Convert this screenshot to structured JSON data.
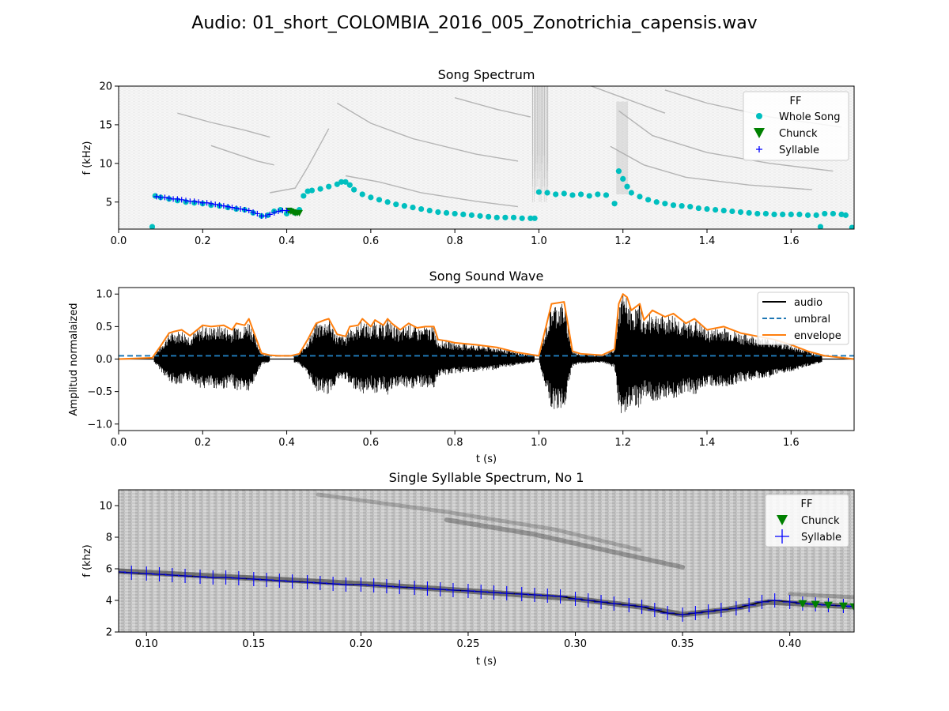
{
  "figure": {
    "suptitle": "Audio: 01_short_COLOMBIA_2016_005_Zonotrichia_capensis.wav"
  },
  "colors": {
    "whole_song": "#00bfbf",
    "chunk": "#008000",
    "syllable": "#0000ff",
    "audio": "#000000",
    "umbral": "#1f77b4",
    "envelope": "#ff7f0e"
  },
  "chart_data": [
    {
      "id": "song-spectrum",
      "type": "scatter",
      "background": "spectrogram",
      "title": "Song Spectrum",
      "xlabel": "",
      "ylabel": "f (kHz)",
      "xlim": [
        0,
        1.75
      ],
      "ylim": [
        1.5,
        20
      ],
      "xticks": [
        "0.0",
        "0.2",
        "0.4",
        "0.6",
        "0.8",
        "1.0",
        "1.2",
        "1.4",
        "1.6"
      ],
      "yticks": [
        "5",
        "10",
        "15",
        "20"
      ],
      "legend": {
        "title": "FF",
        "position": "top-right",
        "entries": [
          {
            "label": "Whole Song",
            "marker": "circle",
            "color": "#00bfbf"
          },
          {
            "label": "Chunck",
            "marker": "triangle-down",
            "color": "#008000"
          },
          {
            "label": "Syllable",
            "marker": "plus",
            "color": "#0000ff"
          }
        ]
      },
      "series": [
        {
          "name": "Whole Song",
          "marker": "circle",
          "color": "#00bfbf",
          "x": [
            0.08,
            0.087,
            0.1,
            0.12,
            0.14,
            0.16,
            0.18,
            0.2,
            0.22,
            0.24,
            0.26,
            0.28,
            0.3,
            0.32,
            0.34,
            0.355,
            0.37,
            0.385,
            0.4,
            0.41,
            0.42,
            0.43,
            0.44,
            0.45,
            0.46,
            0.48,
            0.5,
            0.52,
            0.53,
            0.54,
            0.55,
            0.56,
            0.58,
            0.6,
            0.62,
            0.64,
            0.66,
            0.68,
            0.7,
            0.72,
            0.74,
            0.76,
            0.78,
            0.8,
            0.82,
            0.84,
            0.86,
            0.88,
            0.9,
            0.92,
            0.94,
            0.96,
            0.98,
            0.99,
            1.0,
            1.02,
            1.04,
            1.06,
            1.08,
            1.1,
            1.12,
            1.14,
            1.16,
            1.18,
            1.19,
            1.2,
            1.21,
            1.22,
            1.24,
            1.26,
            1.28,
            1.3,
            1.32,
            1.34,
            1.36,
            1.38,
            1.4,
            1.42,
            1.44,
            1.46,
            1.48,
            1.5,
            1.52,
            1.54,
            1.56,
            1.58,
            1.6,
            1.62,
            1.64,
            1.66,
            1.67,
            1.68,
            1.7,
            1.72,
            1.73,
            1.745
          ],
          "y": [
            1.8,
            5.8,
            5.6,
            5.4,
            5.2,
            5.0,
            4.9,
            4.8,
            4.6,
            4.5,
            4.3,
            4.1,
            4.0,
            3.6,
            3.2,
            3.3,
            3.8,
            4.0,
            3.5,
            3.9,
            3.6,
            4.0,
            5.8,
            6.4,
            6.5,
            6.7,
            7.0,
            7.3,
            7.6,
            7.6,
            7.2,
            6.6,
            6.0,
            5.6,
            5.3,
            5.0,
            4.7,
            4.5,
            4.3,
            4.1,
            3.9,
            3.7,
            3.6,
            3.5,
            3.4,
            3.3,
            3.2,
            3.1,
            3.0,
            3.0,
            3.0,
            2.9,
            2.9,
            2.9,
            6.3,
            6.2,
            6.0,
            6.1,
            5.9,
            6.0,
            5.8,
            6.0,
            5.9,
            4.8,
            9.0,
            8.0,
            7.0,
            6.2,
            5.7,
            5.3,
            5.0,
            4.8,
            4.6,
            4.5,
            4.4,
            4.2,
            4.1,
            4.0,
            3.9,
            3.8,
            3.7,
            3.6,
            3.5,
            3.5,
            3.4,
            3.4,
            3.4,
            3.4,
            3.3,
            3.3,
            1.8,
            3.5,
            3.5,
            3.4,
            3.3,
            1.7
          ]
        },
        {
          "name": "Chunck",
          "marker": "triangle-down",
          "color": "#008000",
          "x": [
            0.405,
            0.41,
            0.415,
            0.42,
            0.425,
            0.43
          ],
          "y": [
            3.9,
            3.8,
            3.7,
            3.6,
            3.6,
            3.6
          ]
        },
        {
          "name": "Syllable",
          "marker": "plus",
          "color": "#0000ff",
          "x": [
            0.09,
            0.1,
            0.11,
            0.12,
            0.13,
            0.14,
            0.15,
            0.16,
            0.17,
            0.18,
            0.19,
            0.2,
            0.21,
            0.22,
            0.23,
            0.24,
            0.25,
            0.26,
            0.27,
            0.28,
            0.29,
            0.3,
            0.31,
            0.32,
            0.33,
            0.34,
            0.35,
            0.36,
            0.37,
            0.38,
            0.39,
            0.4
          ],
          "y": [
            5.7,
            5.6,
            5.6,
            5.5,
            5.4,
            5.4,
            5.3,
            5.2,
            5.1,
            5.1,
            5.0,
            4.9,
            4.9,
            4.8,
            4.7,
            4.6,
            4.5,
            4.4,
            4.3,
            4.2,
            4.1,
            4.0,
            3.9,
            3.7,
            3.5,
            3.2,
            3.2,
            3.4,
            3.6,
            3.8,
            3.9,
            3.9
          ]
        }
      ]
    },
    {
      "id": "song-sound-wave",
      "type": "line",
      "title": "Song Sound Wave",
      "xlabel": "t (s)",
      "ylabel": "Amplitud normalaized",
      "xlim": [
        0,
        1.75
      ],
      "ylim": [
        -1.1,
        1.1
      ],
      "xticks": [
        "0.0",
        "0.2",
        "0.4",
        "0.6",
        "0.8",
        "1.0",
        "1.2",
        "1.4",
        "1.6"
      ],
      "yticks": [
        "−1.0",
        "−0.5",
        "0.0",
        "0.5",
        "1.0"
      ],
      "legend": {
        "position": "top-right",
        "entries": [
          {
            "label": "audio",
            "style": "solid",
            "color": "#000000"
          },
          {
            "label": "umbral",
            "style": "dashed",
            "color": "#1f77b4"
          },
          {
            "label": "envelope",
            "style": "solid",
            "color": "#ff7f0e"
          }
        ]
      },
      "umbral": 0.05,
      "envelope": {
        "x": [
          0,
          0.08,
          0.1,
          0.12,
          0.13,
          0.15,
          0.17,
          0.2,
          0.22,
          0.25,
          0.27,
          0.28,
          0.3,
          0.31,
          0.32,
          0.34,
          0.36,
          0.38,
          0.41,
          0.43,
          0.45,
          0.47,
          0.49,
          0.5,
          0.52,
          0.54,
          0.55,
          0.57,
          0.58,
          0.6,
          0.61,
          0.63,
          0.64,
          0.65,
          0.67,
          0.69,
          0.71,
          0.73,
          0.75,
          0.76,
          0.78,
          0.8,
          0.85,
          0.9,
          0.95,
          1.0,
          1.03,
          1.06,
          1.08,
          1.1,
          1.15,
          1.18,
          1.19,
          1.2,
          1.21,
          1.22,
          1.24,
          1.25,
          1.27,
          1.3,
          1.32,
          1.35,
          1.37,
          1.4,
          1.44,
          1.48,
          1.52,
          1.56,
          1.6,
          1.64,
          1.68,
          1.75
        ],
        "y": [
          0.0,
          0.02,
          0.2,
          0.4,
          0.42,
          0.45,
          0.36,
          0.52,
          0.5,
          0.52,
          0.45,
          0.55,
          0.52,
          0.62,
          0.44,
          0.09,
          0.06,
          0.05,
          0.05,
          0.08,
          0.3,
          0.55,
          0.6,
          0.62,
          0.38,
          0.35,
          0.5,
          0.52,
          0.62,
          0.5,
          0.6,
          0.52,
          0.62,
          0.55,
          0.45,
          0.55,
          0.48,
          0.5,
          0.5,
          0.3,
          0.28,
          0.25,
          0.22,
          0.18,
          0.1,
          0.05,
          0.85,
          0.88,
          0.12,
          0.08,
          0.06,
          0.15,
          0.85,
          1.0,
          0.95,
          0.75,
          0.85,
          0.6,
          0.75,
          0.65,
          0.7,
          0.55,
          0.62,
          0.45,
          0.5,
          0.4,
          0.35,
          0.3,
          0.22,
          0.12,
          0.05,
          0.0
        ]
      }
    },
    {
      "id": "single-syllable-spectrum",
      "type": "scatter",
      "background": "spectrogram",
      "title": "Single Syllable Spectrum, No 1",
      "xlabel": "t (s)",
      "ylabel": "f (khz)",
      "xlim": [
        0.087,
        0.43
      ],
      "ylim": [
        2,
        11
      ],
      "xticks": [
        "0.10",
        "0.15",
        "0.20",
        "0.25",
        "0.30",
        "0.35",
        "0.40"
      ],
      "yticks": [
        "2",
        "4",
        "6",
        "8",
        "10"
      ],
      "legend": {
        "title": "FF",
        "position": "top-right",
        "entries": [
          {
            "label": "Chunck",
            "marker": "triangle-down",
            "color": "#008000"
          },
          {
            "label": "Syllable",
            "marker": "plus",
            "color": "#0000ff"
          }
        ]
      },
      "series": [
        {
          "name": "Syllable",
          "marker": "plus",
          "color": "#0000ff",
          "x": [
            0.087,
            0.093,
            0.1,
            0.106,
            0.112,
            0.118,
            0.125,
            0.131,
            0.137,
            0.143,
            0.15,
            0.156,
            0.162,
            0.168,
            0.175,
            0.181,
            0.187,
            0.193,
            0.2,
            0.206,
            0.212,
            0.218,
            0.225,
            0.231,
            0.237,
            0.243,
            0.25,
            0.256,
            0.262,
            0.268,
            0.275,
            0.281,
            0.287,
            0.293,
            0.3,
            0.306,
            0.312,
            0.318,
            0.325,
            0.331,
            0.337,
            0.343,
            0.35,
            0.356,
            0.362,
            0.368,
            0.375,
            0.381,
            0.387,
            0.393,
            0.4,
            0.406,
            0.412,
            0.418,
            0.425,
            0.43
          ],
          "y": [
            5.8,
            5.75,
            5.7,
            5.65,
            5.6,
            5.55,
            5.5,
            5.45,
            5.45,
            5.4,
            5.35,
            5.3,
            5.25,
            5.2,
            5.15,
            5.1,
            5.05,
            5.0,
            5.0,
            4.95,
            4.9,
            4.85,
            4.8,
            4.75,
            4.7,
            4.65,
            4.6,
            4.55,
            4.5,
            4.45,
            4.4,
            4.35,
            4.3,
            4.25,
            4.1,
            4.0,
            3.9,
            3.8,
            3.7,
            3.6,
            3.4,
            3.2,
            3.1,
            3.2,
            3.3,
            3.4,
            3.5,
            3.7,
            3.9,
            4.0,
            3.9,
            3.8,
            3.75,
            3.7,
            3.65,
            3.6
          ]
        },
        {
          "name": "Chunck",
          "marker": "triangle-down",
          "color": "#008000",
          "x": [
            0.406,
            0.412,
            0.418,
            0.425,
            0.43
          ],
          "y": [
            3.8,
            3.75,
            3.7,
            3.65,
            3.6
          ]
        }
      ]
    }
  ]
}
